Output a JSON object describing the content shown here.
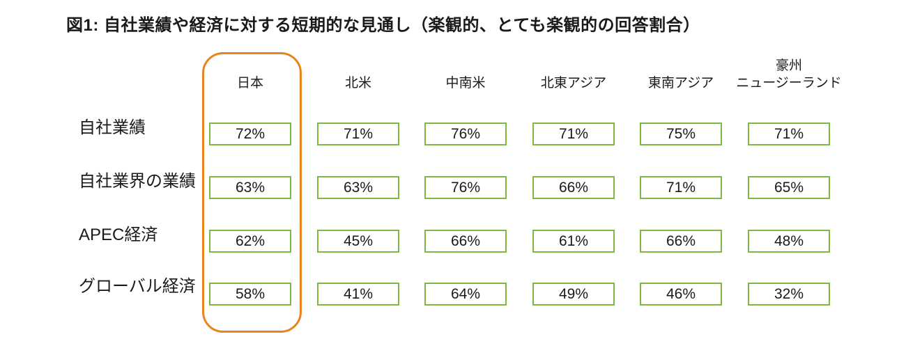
{
  "title": "図1: 自社業績や経済に対する短期的な見通し（楽観的、とても楽観的の回答割合）",
  "colors": {
    "value_box_border": "#7EB742",
    "highlight_border": "#E8831D",
    "text": "#1A1A1A",
    "background": "#FFFFFF"
  },
  "table": {
    "columns": [
      {
        "label": "日本",
        "highlighted": true
      },
      {
        "label": "北米",
        "highlighted": false
      },
      {
        "label": "中南米",
        "highlighted": false
      },
      {
        "label": "北東アジア",
        "highlighted": false
      },
      {
        "label": "東南アジア",
        "highlighted": false
      },
      {
        "label": "豪州\nニュージーランド",
        "highlighted": false
      }
    ],
    "rows": [
      {
        "label": "自社業績",
        "values": [
          "72%",
          "71%",
          "76%",
          "71%",
          "75%",
          "71%"
        ]
      },
      {
        "label": "自社業界の業績",
        "values": [
          "63%",
          "63%",
          "76%",
          "66%",
          "71%",
          "65%"
        ]
      },
      {
        "label": "APEC経済",
        "values": [
          "62%",
          "45%",
          "66%",
          "61%",
          "66%",
          "48%"
        ]
      },
      {
        "label": "グローバル経済",
        "values": [
          "58%",
          "41%",
          "64%",
          "49%",
          "46%",
          "32%"
        ]
      }
    ]
  },
  "chart_data": {
    "type": "table",
    "title": "図1: 自社業績や経済に対する短期的な見通し（楽観的、とても楽観的の回答割合）",
    "categories": [
      "日本",
      "北米",
      "中南米",
      "北東アジア",
      "東南アジア",
      "豪州ニュージーランド"
    ],
    "series": [
      {
        "name": "自社業績",
        "values": [
          72,
          71,
          76,
          71,
          75,
          71
        ]
      },
      {
        "name": "自社業界の業績",
        "values": [
          63,
          63,
          76,
          66,
          71,
          65
        ]
      },
      {
        "name": "APEC経済",
        "values": [
          62,
          45,
          66,
          61,
          66,
          48
        ]
      },
      {
        "name": "グローバル経済",
        "values": [
          58,
          41,
          64,
          49,
          46,
          32
        ]
      }
    ],
    "unit": "%",
    "highlighted_category": "日本",
    "legend_position": "none",
    "grid": false
  }
}
